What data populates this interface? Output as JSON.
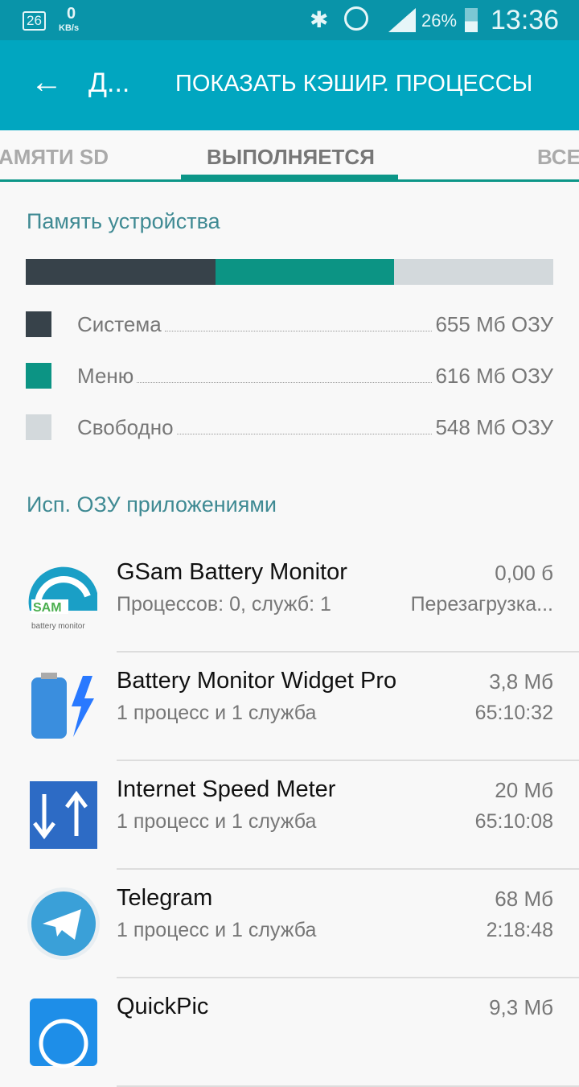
{
  "status_bar": {
    "notif_badge": "26",
    "speed_value": "0",
    "speed_unit": "KB/s",
    "battery": "26%",
    "time": "13:36",
    "icons": [
      "bluetooth-icon",
      "alarm-icon",
      "signal-icon",
      "battery-icon"
    ]
  },
  "app_bar": {
    "title": "Д...",
    "action": "ПОКАЗАТЬ КЭШИР. ПРОЦЕССЫ"
  },
  "tabs": [
    {
      "label": "АМЯТИ SD"
    },
    {
      "label": "ВЫПОЛНЯЕТСЯ",
      "active": true
    },
    {
      "label": "ВСЕ"
    }
  ],
  "memory": {
    "title": "Память устройства",
    "items": [
      {
        "label": "Система",
        "value": "655 Мб ОЗУ",
        "mb": 655,
        "color": "#37424a"
      },
      {
        "label": "Меню",
        "value": "616 Мб ОЗУ",
        "mb": 616,
        "color": "#0c9484"
      },
      {
        "label": "Свободно",
        "value": "548 Мб ОЗУ",
        "mb": 548,
        "color": "#d3d9dc"
      }
    ]
  },
  "apps": {
    "title": "Исп. ОЗУ приложениями",
    "items": [
      {
        "name": "GSam Battery Monitor",
        "sub": "Процессов: 0, служб: 1",
        "size": "0,00 б",
        "time": "Перезагрузка...",
        "icon": "gsam-icon",
        "icon_text": "SAM",
        "icon_caption": "battery monitor"
      },
      {
        "name": "Battery Monitor Widget Pro",
        "sub": "1 процесс и 1 служба",
        "size": "3,8 Мб",
        "time": "65:10:32",
        "icon": "battery-widget-icon"
      },
      {
        "name": "Internet Speed Meter",
        "sub": "1 процесс и 1 служба",
        "size": "20 Мб",
        "time": "65:10:08",
        "icon": "speed-meter-icon"
      },
      {
        "name": "Telegram",
        "sub": "1 процесс и 1 служба",
        "size": "68 Мб",
        "time": "2:18:48",
        "icon": "telegram-icon"
      },
      {
        "name": "QuickPic",
        "sub": "",
        "size": "9,3 Мб",
        "time": "",
        "icon": "quickpic-icon"
      }
    ]
  }
}
